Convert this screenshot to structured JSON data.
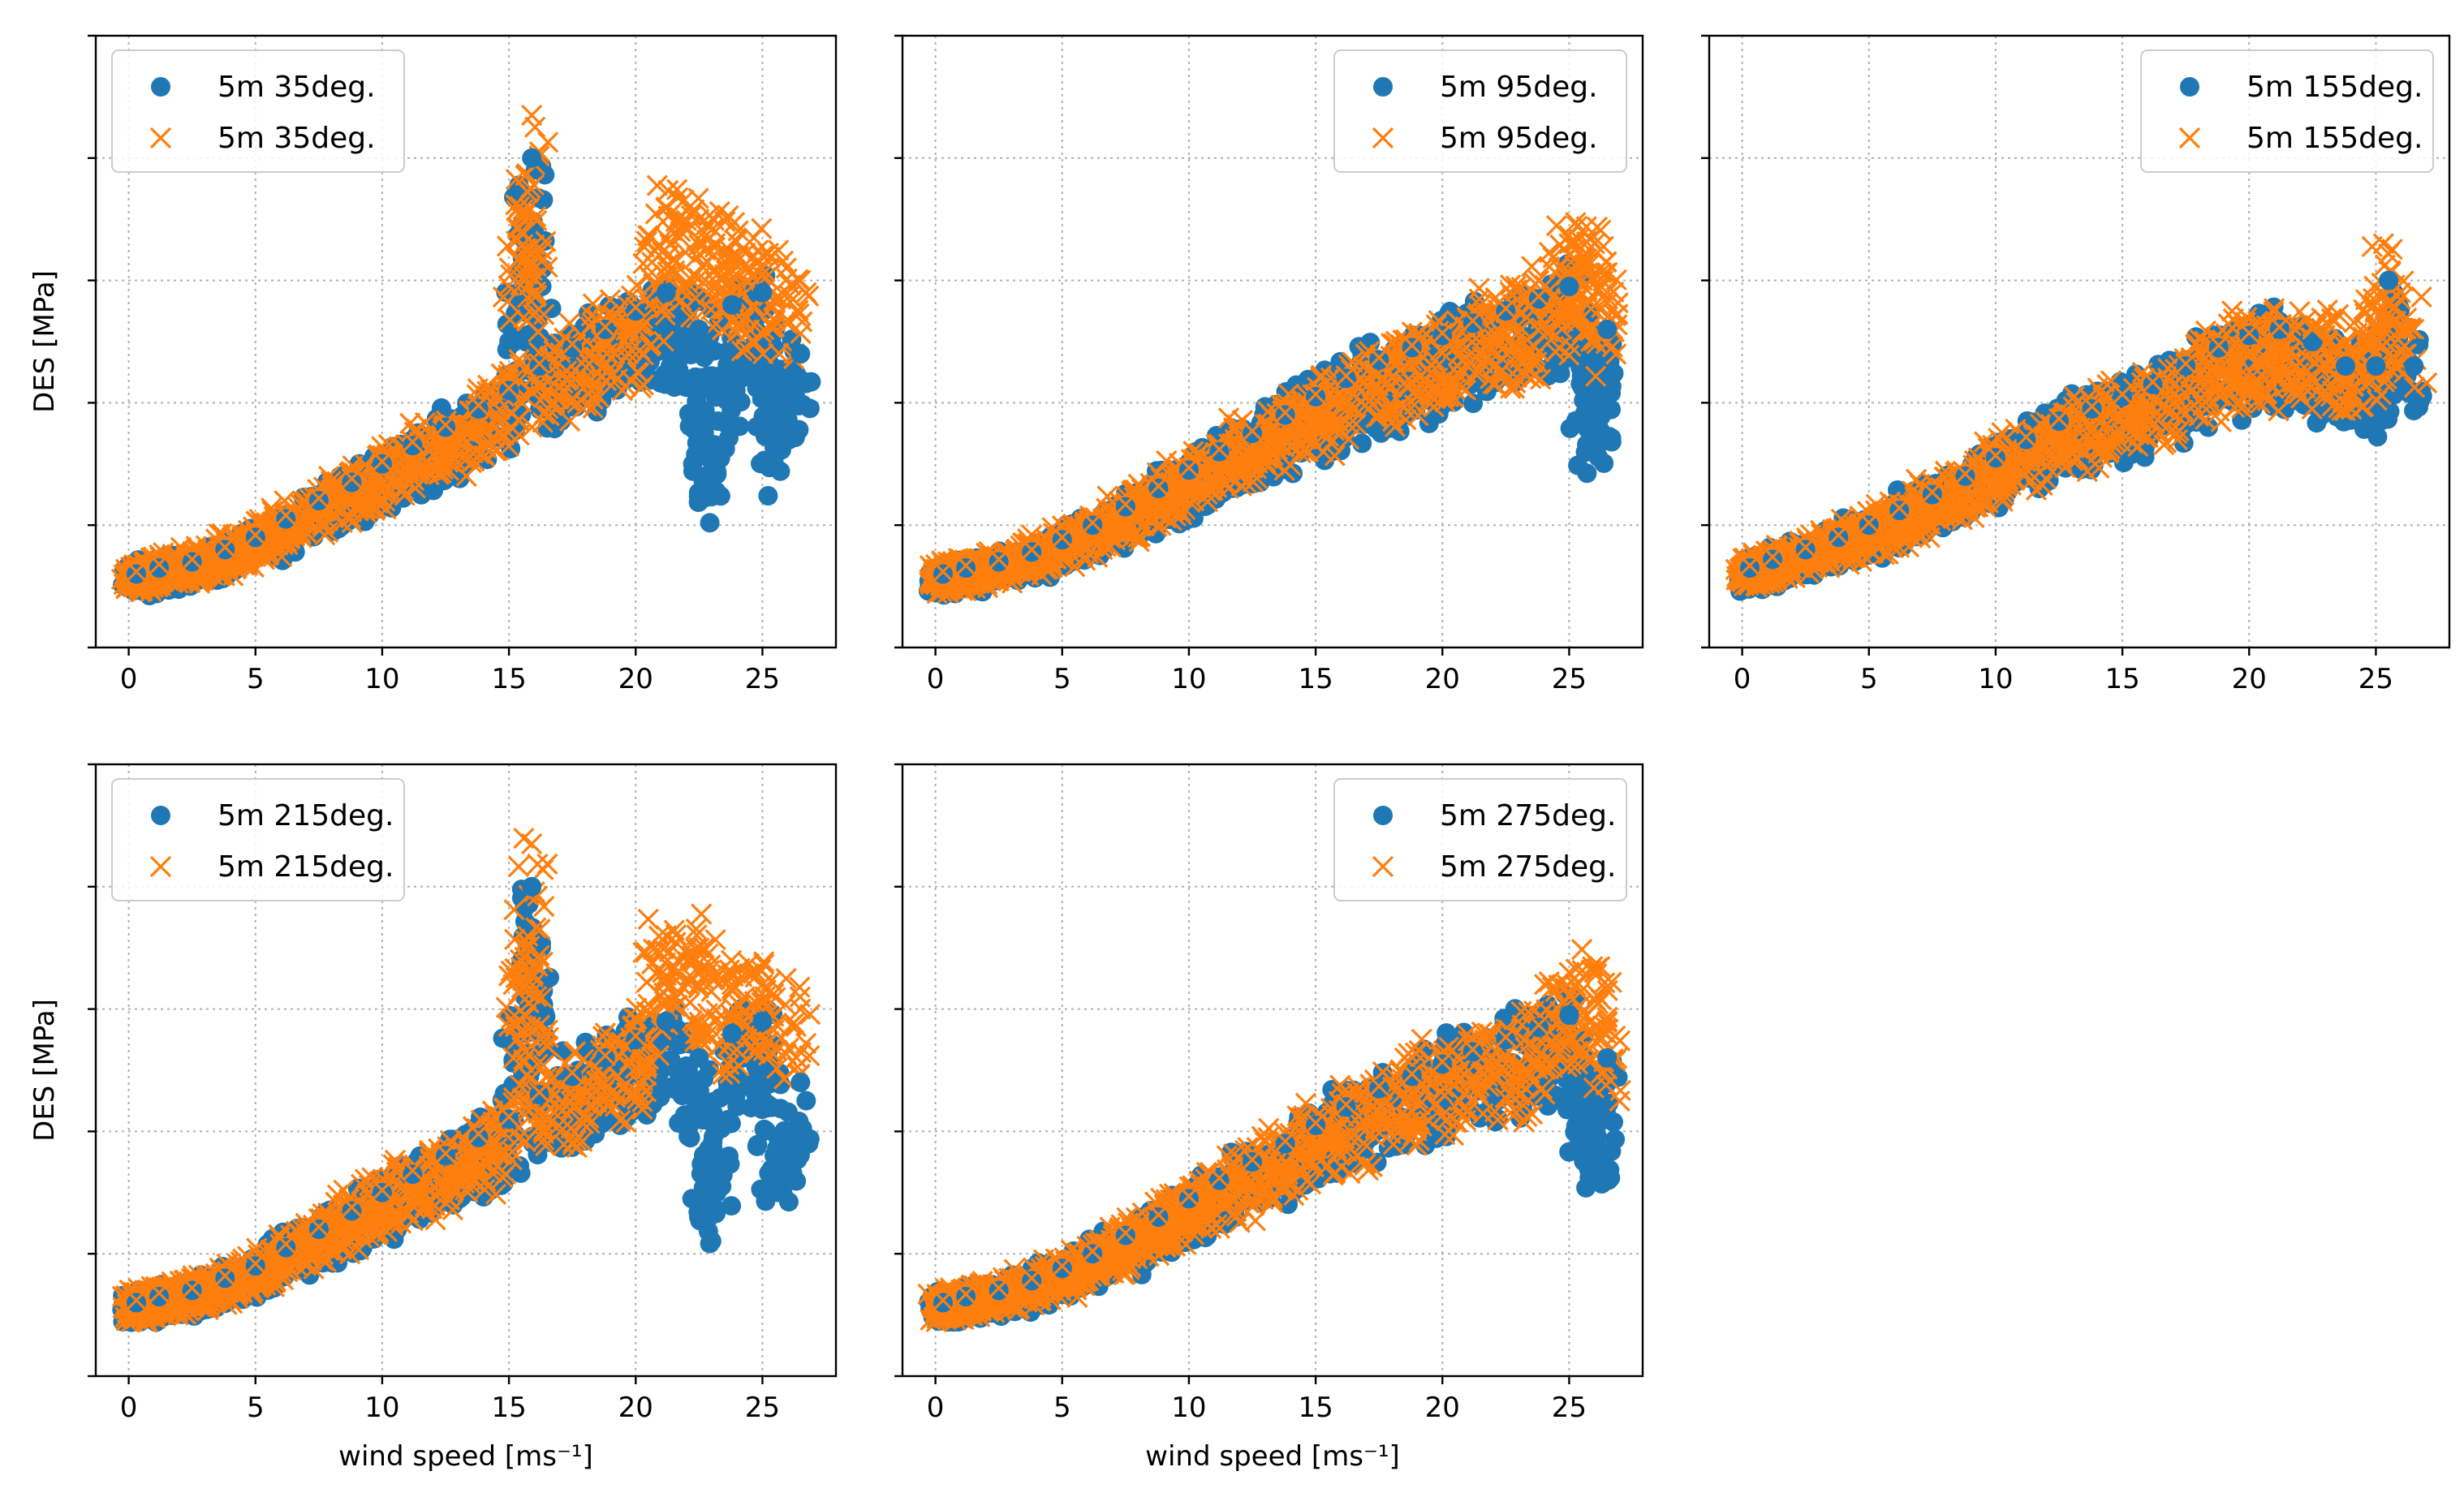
{
  "chart_data": [
    {
      "type": "scatter",
      "panel": "top-left",
      "xlabel": "",
      "ylabel": "DES [MPa]",
      "xlim": [
        -1.3,
        27.9
      ],
      "ylim": [
        0,
        5
      ],
      "xticks": [
        0,
        5,
        10,
        15,
        20,
        25
      ],
      "yticks": [
        0,
        1,
        2,
        3,
        4,
        5
      ],
      "ytick_labels_visible": false,
      "grid": true,
      "legend_position": "top-left",
      "series": [
        {
          "name": "5m 35deg.",
          "marker": "circle",
          "color": "#1f77b4",
          "x": [
            0.3,
            1.2,
            2.5,
            3.8,
            5.0,
            6.2,
            7.5,
            8.8,
            10.0,
            11.2,
            12.5,
            13.8,
            15.0,
            15.9,
            16.2,
            17.5,
            18.8,
            20.0,
            21.2,
            22.5,
            22.8,
            23.8,
            25.0,
            25.5,
            26.5
          ],
          "y": [
            0.6,
            0.65,
            0.7,
            0.8,
            0.9,
            1.05,
            1.2,
            1.35,
            1.5,
            1.65,
            1.8,
            1.95,
            2.1,
            4.0,
            2.3,
            2.45,
            2.6,
            2.75,
            2.9,
            2.6,
            1.3,
            2.8,
            2.9,
            1.7,
            2.4
          ]
        },
        {
          "name": "5m 35deg.",
          "marker": "x",
          "color": "#ff7f0e",
          "x": [
            0.3,
            1.2,
            2.5,
            3.8,
            5.0,
            6.2,
            7.5,
            8.8,
            10.0,
            11.2,
            12.5,
            13.8,
            15.0,
            15.9,
            16.2,
            17.5,
            18.8,
            20.0,
            21.2,
            22.5,
            23.8,
            25.0,
            26.5
          ],
          "y": [
            0.62,
            0.68,
            0.72,
            0.82,
            0.92,
            1.08,
            1.22,
            1.38,
            1.52,
            1.68,
            1.82,
            1.98,
            2.12,
            4.35,
            2.32,
            2.48,
            2.62,
            2.78,
            3.6,
            3.5,
            3.2,
            3.2,
            3.0
          ]
        }
      ]
    },
    {
      "type": "scatter",
      "panel": "top-middle",
      "xlabel": "",
      "ylabel": "",
      "xlim": [
        -1.3,
        27.9
      ],
      "ylim": [
        0,
        5
      ],
      "xticks": [
        0,
        5,
        10,
        15,
        20,
        25
      ],
      "yticks": [
        0,
        1,
        2,
        3,
        4,
        5
      ],
      "ytick_labels_visible": false,
      "grid": true,
      "legend_position": "top-right",
      "series": [
        {
          "name": "5m 95deg.",
          "marker": "circle",
          "color": "#1f77b4",
          "x": [
            0.3,
            1.2,
            2.5,
            3.8,
            5.0,
            6.2,
            7.5,
            8.8,
            10.0,
            11.2,
            12.5,
            13.8,
            15.0,
            16.2,
            17.5,
            18.8,
            20.0,
            21.2,
            22.5,
            23.8,
            25.0,
            26.0,
            26.5
          ],
          "y": [
            0.6,
            0.65,
            0.7,
            0.78,
            0.88,
            1.0,
            1.15,
            1.3,
            1.45,
            1.6,
            1.75,
            1.9,
            2.05,
            2.2,
            2.35,
            2.45,
            2.55,
            2.65,
            2.75,
            2.85,
            2.95,
            1.9,
            2.6
          ]
        },
        {
          "name": "5m 95deg.",
          "marker": "x",
          "color": "#ff7f0e",
          "x": [
            0.3,
            1.2,
            2.5,
            3.8,
            5.0,
            6.2,
            7.5,
            8.8,
            10.0,
            11.2,
            12.5,
            13.8,
            15.0,
            16.2,
            17.5,
            18.8,
            20.0,
            21.2,
            22.5,
            23.8,
            25.0,
            26.0,
            26.5
          ],
          "y": [
            0.62,
            0.67,
            0.72,
            0.8,
            0.9,
            1.02,
            1.17,
            1.32,
            1.47,
            1.62,
            1.77,
            1.92,
            2.07,
            2.22,
            2.37,
            2.47,
            2.57,
            2.67,
            2.77,
            2.87,
            3.3,
            3.3,
            2.9
          ]
        }
      ]
    },
    {
      "type": "scatter",
      "panel": "top-right",
      "xlabel": "",
      "ylabel": "",
      "xlim": [
        -1.3,
        27.9
      ],
      "ylim": [
        0,
        5
      ],
      "xticks": [
        0,
        5,
        10,
        15,
        20,
        25
      ],
      "yticks": [
        0,
        1,
        2,
        3,
        4,
        5
      ],
      "ytick_labels_visible": false,
      "grid": true,
      "legend_position": "top-right",
      "series": [
        {
          "name": "5m 155deg.",
          "marker": "circle",
          "color": "#1f77b4",
          "x": [
            0.3,
            1.2,
            2.5,
            3.8,
            5.0,
            6.2,
            7.5,
            8.8,
            10.0,
            11.2,
            12.5,
            13.8,
            15.0,
            16.2,
            17.5,
            18.8,
            20.0,
            21.2,
            22.5,
            23.8,
            25.0,
            25.5,
            26.5
          ],
          "y": [
            0.65,
            0.72,
            0.8,
            0.9,
            1.0,
            1.12,
            1.25,
            1.4,
            1.55,
            1.7,
            1.85,
            1.95,
            2.05,
            2.15,
            2.3,
            2.45,
            2.55,
            2.6,
            2.5,
            2.3,
            2.3,
            3.0,
            2.3
          ]
        },
        {
          "name": "5m 155deg.",
          "marker": "x",
          "color": "#ff7f0e",
          "x": [
            0.3,
            1.2,
            2.5,
            3.8,
            5.0,
            6.2,
            7.5,
            8.8,
            10.0,
            11.2,
            12.5,
            13.8,
            15.0,
            16.2,
            17.5,
            18.8,
            20.0,
            21.2,
            22.5,
            23.8,
            25.0,
            25.3,
            26.5
          ],
          "y": [
            0.67,
            0.74,
            0.82,
            0.92,
            1.02,
            1.14,
            1.27,
            1.42,
            1.57,
            1.72,
            1.87,
            1.97,
            2.07,
            2.17,
            2.32,
            2.47,
            2.57,
            2.62,
            2.6,
            2.5,
            2.6,
            3.3,
            2.6
          ]
        }
      ]
    },
    {
      "type": "scatter",
      "panel": "bottom-left",
      "xlabel": "wind speed [ms⁻¹]",
      "ylabel": "DES [MPa]",
      "xlim": [
        -1.3,
        27.9
      ],
      "ylim": [
        0,
        5
      ],
      "xticks": [
        0,
        5,
        10,
        15,
        20,
        25
      ],
      "yticks": [
        0,
        1,
        2,
        3,
        4,
        5
      ],
      "ytick_labels_visible": false,
      "grid": true,
      "legend_position": "top-left",
      "series": [
        {
          "name": "5m 215deg.",
          "marker": "circle",
          "color": "#1f77b4",
          "x": [
            0.3,
            1.2,
            2.5,
            3.8,
            5.0,
            6.2,
            7.5,
            8.8,
            10.0,
            11.2,
            12.5,
            13.8,
            15.0,
            15.9,
            16.2,
            17.5,
            18.8,
            20.0,
            21.2,
            22.5,
            22.8,
            23.8,
            25.0,
            25.5,
            26.5
          ],
          "y": [
            0.6,
            0.65,
            0.7,
            0.8,
            0.9,
            1.05,
            1.2,
            1.35,
            1.5,
            1.65,
            1.8,
            1.95,
            2.1,
            4.0,
            2.3,
            2.45,
            2.6,
            2.75,
            2.9,
            2.6,
            1.3,
            2.8,
            2.9,
            1.7,
            2.4
          ]
        },
        {
          "name": "5m 215deg.",
          "marker": "x",
          "color": "#ff7f0e",
          "x": [
            0.3,
            1.2,
            2.5,
            3.8,
            5.0,
            6.2,
            7.5,
            8.8,
            10.0,
            11.2,
            12.5,
            13.8,
            15.0,
            15.9,
            16.2,
            17.5,
            18.8,
            20.0,
            21.2,
            22.5,
            23.8,
            25.0,
            26.5
          ],
          "y": [
            0.62,
            0.68,
            0.72,
            0.82,
            0.92,
            1.08,
            1.22,
            1.38,
            1.52,
            1.68,
            1.82,
            1.98,
            2.12,
            4.35,
            2.32,
            2.48,
            2.62,
            2.78,
            3.6,
            3.5,
            3.2,
            3.2,
            3.0
          ]
        }
      ]
    },
    {
      "type": "scatter",
      "panel": "bottom-middle",
      "xlabel": "wind speed [ms⁻¹]",
      "ylabel": "",
      "xlim": [
        -1.3,
        27.9
      ],
      "ylim": [
        0,
        5
      ],
      "xticks": [
        0,
        5,
        10,
        15,
        20,
        25
      ],
      "yticks": [
        0,
        1,
        2,
        3,
        4,
        5
      ],
      "ytick_labels_visible": false,
      "grid": true,
      "legend_position": "top-right",
      "series": [
        {
          "name": "5m 275deg.",
          "marker": "circle",
          "color": "#1f77b4",
          "x": [
            0.3,
            1.2,
            2.5,
            3.8,
            5.0,
            6.2,
            7.5,
            8.8,
            10.0,
            11.2,
            12.5,
            13.8,
            15.0,
            16.2,
            17.5,
            18.8,
            20.0,
            21.2,
            22.5,
            23.8,
            25.0,
            26.0,
            26.5
          ],
          "y": [
            0.6,
            0.65,
            0.7,
            0.78,
            0.88,
            1.0,
            1.15,
            1.3,
            1.45,
            1.6,
            1.75,
            1.9,
            2.05,
            2.2,
            2.35,
            2.45,
            2.55,
            2.65,
            2.75,
            2.85,
            2.95,
            1.9,
            2.6
          ]
        },
        {
          "name": "5m 275deg.",
          "marker": "x",
          "color": "#ff7f0e",
          "x": [
            0.3,
            1.2,
            2.5,
            3.8,
            5.0,
            6.2,
            7.5,
            8.8,
            10.0,
            11.2,
            12.5,
            13.8,
            15.0,
            16.2,
            17.5,
            18.8,
            20.0,
            21.2,
            22.5,
            23.8,
            25.0,
            26.0,
            26.5
          ],
          "y": [
            0.62,
            0.67,
            0.72,
            0.8,
            0.9,
            1.02,
            1.17,
            1.32,
            1.47,
            1.62,
            1.77,
            1.92,
            2.07,
            2.22,
            2.37,
            2.47,
            2.57,
            2.67,
            2.77,
            2.87,
            3.3,
            3.3,
            2.9
          ]
        }
      ]
    }
  ]
}
